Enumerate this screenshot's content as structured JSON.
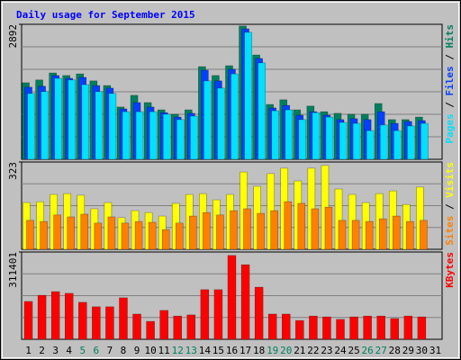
{
  "chart_data": [
    {
      "type": "bar",
      "title": "Daily usage for September 2015",
      "ylim": [
        0,
        2892
      ],
      "yticks": [
        2892
      ],
      "legend_separator": " / ",
      "series": [
        {
          "name": "Pages",
          "color": "#00e0ff",
          "values": [
            1410,
            1450,
            1735,
            1700,
            1600,
            1450,
            1410,
            1020,
            1020,
            1020,
            965,
            850,
            925,
            1680,
            1525,
            1830,
            2720,
            2065,
            1040,
            1060,
            850,
            1000,
            905,
            790,
            770,
            615,
            735,
            615,
            715,
            770,
            null
          ]
        },
        {
          "name": "Files",
          "color": "#0040ff",
          "values": [
            1545,
            1565,
            1795,
            1735,
            1755,
            1580,
            1525,
            1080,
            1215,
            1120,
            1000,
            905,
            985,
            1910,
            1680,
            1930,
            2795,
            2160,
            1100,
            1155,
            945,
            1020,
            945,
            850,
            870,
            850,
            1020,
            770,
            810,
            830,
            null
          ]
        },
        {
          "name": "Hits",
          "color": "#008060",
          "values": [
            1640,
            1700,
            1850,
            1795,
            1830,
            1680,
            1580,
            1120,
            1370,
            1215,
            1060,
            965,
            1060,
            1985,
            1795,
            2005,
            2855,
            2235,
            1175,
            1275,
            1060,
            1140,
            1020,
            985,
            965,
            965,
            1195,
            850,
            850,
            905,
            null
          ]
        }
      ]
    },
    {
      "type": "bar",
      "ylim": [
        0,
        323
      ],
      "yticks": [
        323
      ],
      "legend_separator": " / ",
      "series": [
        {
          "name": "Sites",
          "color": "#ff8000",
          "values": [
            107,
            103,
            127,
            120,
            130,
            97,
            120,
            97,
            103,
            100,
            73,
            97,
            123,
            136,
            127,
            143,
            150,
            133,
            143,
            176,
            170,
            150,
            156,
            107,
            107,
            103,
            113,
            123,
            103,
            107,
            null
          ]
        },
        {
          "name": "Visits",
          "color": "#ffff00",
          "values": [
            173,
            176,
            203,
            206,
            200,
            150,
            173,
            117,
            143,
            136,
            123,
            170,
            203,
            206,
            183,
            203,
            286,
            233,
            280,
            300,
            253,
            300,
            310,
            223,
            203,
            173,
            206,
            216,
            166,
            230,
            null
          ]
        }
      ]
    },
    {
      "type": "bar",
      "ylim": [
        0,
        311401
      ],
      "yticks": [
        311401
      ],
      "categories": [
        "1",
        "2",
        "3",
        "4",
        "5",
        "6",
        "7",
        "8",
        "9",
        "10",
        "11",
        "12",
        "13",
        "14",
        "15",
        "16",
        "17",
        "18",
        "19",
        "20",
        "21",
        "22",
        "23",
        "24",
        "25",
        "26",
        "27",
        "28",
        "29",
        "30",
        "31"
      ],
      "category_colors": [
        "#000000",
        "#000000",
        "#000000",
        "#000000",
        "#008060",
        "#008060",
        "#000000",
        "#000000",
        "#000000",
        "#000000",
        "#000000",
        "#008060",
        "#008060",
        "#000000",
        "#000000",
        "#000000",
        "#000000",
        "#000000",
        "#008060",
        "#008060",
        "#000000",
        "#000000",
        "#000000",
        "#000000",
        "#000000",
        "#008060",
        "#008060",
        "#000000",
        "#000000",
        "#000000",
        "#000000"
      ],
      "series": [
        {
          "name": "KBytes",
          "color": "#ff0000",
          "values": [
            135000,
            157000,
            170000,
            164000,
            132000,
            116000,
            116000,
            148000,
            90000,
            64000,
            103000,
            83000,
            87000,
            177000,
            177000,
            299000,
            266000,
            186000,
            90000,
            90000,
            67000,
            83000,
            80000,
            71000,
            80000,
            83000,
            83000,
            74000,
            83000,
            80000,
            null
          ]
        }
      ]
    }
  ]
}
